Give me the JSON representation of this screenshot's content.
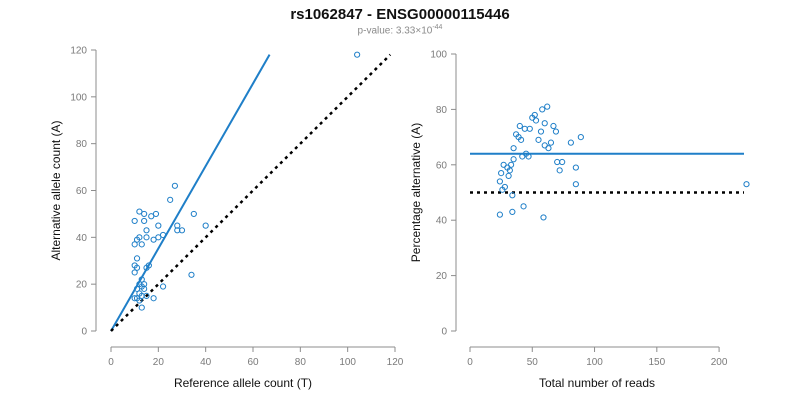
{
  "header": {
    "title": "rs1062847 - ENSG00000115446",
    "pvalue_text": "p-value: 3.33×10",
    "pvalue_exp": "-44"
  },
  "colors": {
    "series": "#1f7fc8",
    "reference_line": "#000000",
    "axis": "#8c8c8c"
  },
  "chart_data": [
    {
      "type": "scatter",
      "xlabel": "Reference allele count (T)",
      "ylabel": "Alternative allele count (A)",
      "xlim": [
        0,
        120
      ],
      "ylim": [
        0,
        120
      ],
      "xticks": [
        0,
        20,
        40,
        60,
        80,
        100,
        120
      ],
      "yticks": [
        0,
        20,
        40,
        60,
        80,
        100,
        120
      ],
      "grid": false,
      "points": [
        [
          10,
          14
        ],
        [
          10,
          25
        ],
        [
          10,
          28
        ],
        [
          10,
          37
        ],
        [
          10,
          47
        ],
        [
          11,
          14
        ],
        [
          11,
          18
        ],
        [
          11,
          27
        ],
        [
          11,
          31
        ],
        [
          11,
          39
        ],
        [
          12,
          13
        ],
        [
          12,
          16
        ],
        [
          12,
          20
        ],
        [
          12,
          40
        ],
        [
          12,
          51
        ],
        [
          13,
          10
        ],
        [
          13,
          15
        ],
        [
          13,
          19
        ],
        [
          13,
          22
        ],
        [
          13,
          37
        ],
        [
          14,
          18
        ],
        [
          14,
          20
        ],
        [
          14,
          47
        ],
        [
          14,
          50
        ],
        [
          15,
          15
        ],
        [
          15,
          27
        ],
        [
          15,
          40
        ],
        [
          15,
          43
        ],
        [
          16,
          28
        ],
        [
          17,
          49
        ],
        [
          18,
          14
        ],
        [
          18,
          39
        ],
        [
          19,
          50
        ],
        [
          20,
          40
        ],
        [
          20,
          45
        ],
        [
          22,
          19
        ],
        [
          22,
          41
        ],
        [
          25,
          56
        ],
        [
          27,
          62
        ],
        [
          28,
          43
        ],
        [
          28,
          45
        ],
        [
          30,
          43
        ],
        [
          34,
          24
        ],
        [
          35,
          50
        ],
        [
          40,
          45
        ],
        [
          104,
          118
        ]
      ],
      "lines": [
        {
          "name": "fitted",
          "style": "solid",
          "x": [
            0,
            67
          ],
          "y": [
            0,
            118
          ]
        },
        {
          "name": "equal",
          "style": "dotted",
          "x": [
            0,
            118
          ],
          "y": [
            0,
            118
          ]
        }
      ]
    },
    {
      "type": "scatter",
      "xlabel": "Total number of reads",
      "ylabel": "Percentage alternative (A)",
      "xlim": [
        0,
        220
      ],
      "ylim": [
        0,
        100
      ],
      "xticks": [
        0,
        50,
        100,
        150,
        200
      ],
      "yticks": [
        0,
        20,
        40,
        60,
        80,
        100
      ],
      "grid": false,
      "points": [
        [
          24,
          42
        ],
        [
          24,
          54
        ],
        [
          25,
          57
        ],
        [
          26,
          51
        ],
        [
          27,
          60
        ],
        [
          28,
          52
        ],
        [
          30,
          59
        ],
        [
          31,
          56
        ],
        [
          32,
          58
        ],
        [
          33,
          60
        ],
        [
          34,
          43
        ],
        [
          34,
          49
        ],
        [
          35,
          62
        ],
        [
          35,
          66
        ],
        [
          37,
          71
        ],
        [
          39,
          70
        ],
        [
          40,
          74
        ],
        [
          41,
          69
        ],
        [
          42,
          63
        ],
        [
          43,
          45
        ],
        [
          44,
          73
        ],
        [
          45,
          64
        ],
        [
          47,
          63
        ],
        [
          48,
          73
        ],
        [
          50,
          77
        ],
        [
          52,
          78
        ],
        [
          53,
          76
        ],
        [
          55,
          69
        ],
        [
          57,
          72
        ],
        [
          58,
          80
        ],
        [
          59,
          41
        ],
        [
          60,
          67
        ],
        [
          60,
          75
        ],
        [
          62,
          81
        ],
        [
          63,
          66
        ],
        [
          65,
          68
        ],
        [
          67,
          74
        ],
        [
          69,
          72
        ],
        [
          70,
          61
        ],
        [
          72,
          58
        ],
        [
          74,
          61
        ],
        [
          81,
          68
        ],
        [
          85,
          53
        ],
        [
          85,
          59
        ],
        [
          89,
          70
        ],
        [
          222,
          53
        ]
      ],
      "lines": [
        {
          "name": "mean",
          "style": "solid",
          "x": [
            0,
            220
          ],
          "y": [
            64,
            64
          ]
        },
        {
          "name": "expected",
          "style": "dotted",
          "x": [
            0,
            220
          ],
          "y": [
            50,
            50
          ]
        }
      ]
    }
  ]
}
